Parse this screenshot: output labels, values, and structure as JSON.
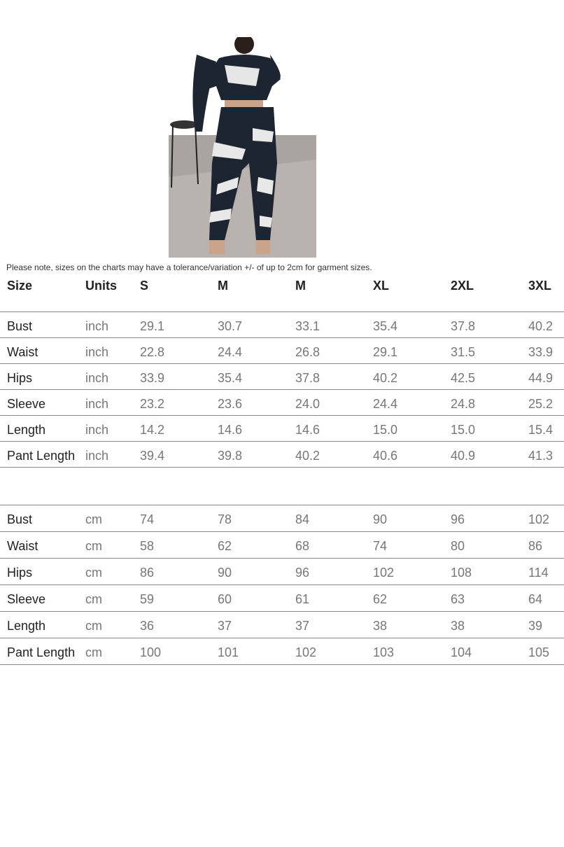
{
  "note": "Please note, sizes on the charts may have a tolerance/variation +/- of up to 2cm for garment sizes.",
  "header": [
    "Size",
    "Units",
    "S",
    "M",
    "M",
    "XL",
    "2XL",
    "3XL"
  ],
  "inch_table": [
    [
      "Bust",
      "inch",
      "29.1",
      "30.7",
      "33.1",
      "35.4",
      "37.8",
      "40.2"
    ],
    [
      "Waist",
      "inch",
      "22.8",
      "24.4",
      "26.8",
      "29.1",
      "31.5",
      "33.9"
    ],
    [
      "Hips",
      "inch",
      "33.9",
      "35.4",
      "37.8",
      "40.2",
      "42.5",
      "44.9"
    ],
    [
      "Sleeve",
      "inch",
      "23.2",
      "23.6",
      "24.0",
      "24.4",
      "24.8",
      "25.2"
    ],
    [
      "Length",
      "inch",
      "14.2",
      "14.6",
      "14.6",
      "15.0",
      "15.0",
      "15.4"
    ],
    [
      "Pant Length",
      "inch",
      "39.4",
      "39.8",
      "40.2",
      "40.6",
      "40.9",
      "41.3"
    ]
  ],
  "cm_table": [
    [
      "Bust",
      "cm",
      "74",
      "78",
      "84",
      "90",
      "96",
      "102"
    ],
    [
      "Waist",
      "cm",
      "58",
      "62",
      "68",
      "74",
      "80",
      "86"
    ],
    [
      "Hips",
      "cm",
      "86",
      "90",
      "96",
      "102",
      "108",
      "114"
    ],
    [
      "Sleeve",
      "cm",
      "59",
      "60",
      "61",
      "62",
      "63",
      "64"
    ],
    [
      "Length",
      "cm",
      "36",
      "37",
      "37",
      "38",
      "38",
      "39"
    ],
    [
      "Pant Length",
      "cm",
      "100",
      "101",
      "102",
      "103",
      "104",
      "105"
    ]
  ]
}
